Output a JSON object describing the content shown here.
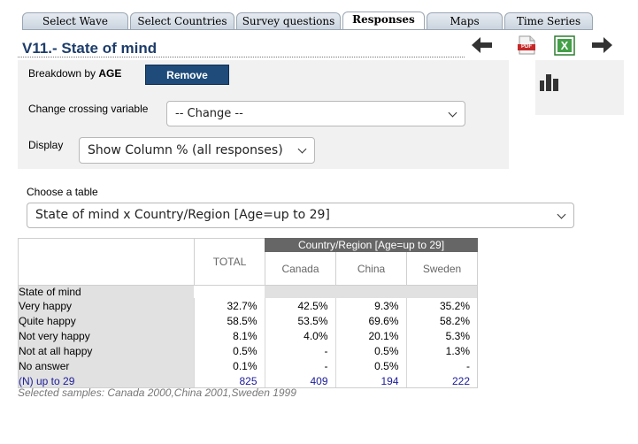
{
  "tabs": [
    {
      "label": "Select Wave",
      "active": false
    },
    {
      "label": "Select Countries",
      "active": false
    },
    {
      "label": "Survey questions",
      "active": false
    },
    {
      "label": "Responses",
      "active": true
    },
    {
      "label": "Maps",
      "active": false
    },
    {
      "label": "Time Series",
      "active": false
    }
  ],
  "page_title": "V11.- State of mind",
  "toolbar": {
    "back_icon": "arrow-left-icon",
    "pdf_icon": "pdf-icon",
    "pdf_text": "PDF",
    "excel_icon": "excel-icon",
    "excel_text": "X",
    "forward_icon": "arrow-right-icon",
    "chart_icon": "bar-chart-icon"
  },
  "breakdown": {
    "label_prefix": "Breakdown by ",
    "variable": "AGE",
    "remove_label": "Remove"
  },
  "crossing": {
    "label": "Change crossing variable",
    "selected": "-- Change --"
  },
  "display": {
    "label": "Display",
    "selected": "Show Column % (all responses)"
  },
  "table_select": {
    "label": "Choose a table",
    "selected": "State of mind x Country/Region [Age=up to 29]"
  },
  "results": {
    "group_header": "Country/Region [Age=up to 29]",
    "total_header": "TOTAL",
    "columns": [
      "Canada",
      "China",
      "Sweden"
    ],
    "section_label": "State of mind",
    "rows": [
      {
        "label": "Very happy",
        "total": "32.7%",
        "values": [
          "42.5%",
          "9.3%",
          "35.2%"
        ]
      },
      {
        "label": "Quite happy",
        "total": "58.5%",
        "values": [
          "53.5%",
          "69.6%",
          "58.2%"
        ]
      },
      {
        "label": "Not very happy",
        "total": "8.1%",
        "values": [
          "4.0%",
          "20.1%",
          "5.3%"
        ]
      },
      {
        "label": "Not at all happy",
        "total": "0.5%",
        "values": [
          "-",
          "0.5%",
          "1.3%"
        ]
      },
      {
        "label": "No answer",
        "total": "0.1%",
        "values": [
          "-",
          "0.5%",
          "-"
        ]
      }
    ],
    "n_row": {
      "label": "(N) up to 29",
      "total": "825",
      "values": [
        "409",
        "194",
        "222"
      ]
    }
  },
  "footnote": "Selected samples: Canada 2000,China 2001,Sweden 1999",
  "colors": {
    "title": "#1d3d6b",
    "remove_button": "#1e4b7a",
    "group_header_bg": "#666666",
    "n_row_text": "#1b1b9a"
  }
}
